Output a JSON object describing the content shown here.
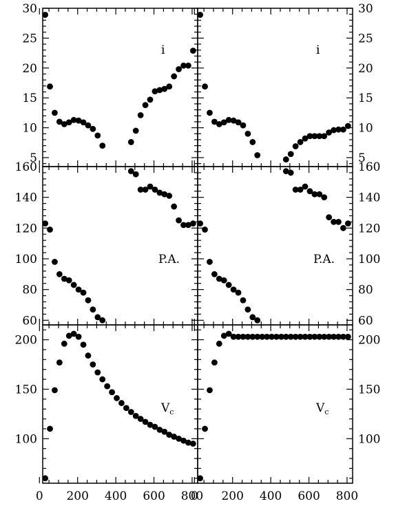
{
  "chart_data": [
    {
      "type": "scatter",
      "panel": "top-left",
      "label": "i",
      "xlim": [
        0,
        800
      ],
      "ylim": [
        3.5,
        30
      ],
      "xticks": [
        0,
        200,
        400,
        600,
        800
      ],
      "yticks": [
        5,
        10,
        15,
        20,
        25,
        30
      ],
      "points": [
        [
          30,
          28.9
        ],
        [
          55,
          16.9
        ],
        [
          80,
          12.5
        ],
        [
          105,
          11.0
        ],
        [
          130,
          10.6
        ],
        [
          155,
          10.9
        ],
        [
          180,
          11.3
        ],
        [
          205,
          11.2
        ],
        [
          230,
          10.9
        ],
        [
          255,
          10.4
        ],
        [
          280,
          9.8
        ],
        [
          305,
          8.7
        ],
        [
          330,
          7.0
        ],
        [
          480,
          7.6
        ],
        [
          505,
          9.5
        ],
        [
          530,
          12.1
        ],
        [
          555,
          13.8
        ],
        [
          580,
          14.7
        ],
        [
          605,
          16.1
        ],
        [
          630,
          16.3
        ],
        [
          655,
          16.5
        ],
        [
          680,
          16.9
        ],
        [
          705,
          18.6
        ],
        [
          730,
          19.8
        ],
        [
          755,
          20.4
        ],
        [
          780,
          20.4
        ],
        [
          805,
          22.9
        ]
      ]
    },
    {
      "type": "scatter",
      "panel": "top-right",
      "label": "i",
      "xlim": [
        0,
        800
      ],
      "ylim": [
        3.5,
        30
      ],
      "xticks": [
        0,
        200,
        400,
        600,
        800
      ],
      "yticks": [
        5,
        10,
        15,
        20,
        25,
        30
      ],
      "points": [
        [
          30,
          28.9
        ],
        [
          55,
          16.9
        ],
        [
          80,
          12.5
        ],
        [
          105,
          11.0
        ],
        [
          130,
          10.6
        ],
        [
          155,
          10.9
        ],
        [
          180,
          11.3
        ],
        [
          205,
          11.2
        ],
        [
          230,
          10.9
        ],
        [
          255,
          10.4
        ],
        [
          280,
          9.0
        ],
        [
          305,
          7.6
        ],
        [
          330,
          5.4
        ],
        [
          480,
          4.7
        ],
        [
          505,
          5.6
        ],
        [
          530,
          6.9
        ],
        [
          555,
          7.6
        ],
        [
          580,
          8.2
        ],
        [
          605,
          8.6
        ],
        [
          630,
          8.6
        ],
        [
          655,
          8.6
        ],
        [
          680,
          8.6
        ],
        [
          705,
          9.2
        ],
        [
          730,
          9.6
        ],
        [
          755,
          9.7
        ],
        [
          780,
          9.7
        ],
        [
          805,
          10.3
        ]
      ]
    },
    {
      "type": "scatter",
      "panel": "middle-left",
      "label": "P.A.",
      "xlim": [
        0,
        800
      ],
      "ylim": [
        57,
        160
      ],
      "xticks": [
        0,
        200,
        400,
        600,
        800
      ],
      "yticks": [
        60,
        80,
        100,
        120,
        140,
        160
      ],
      "points": [
        [
          30,
          123
        ],
        [
          55,
          119
        ],
        [
          80,
          98
        ],
        [
          105,
          90
        ],
        [
          130,
          87
        ],
        [
          155,
          86
        ],
        [
          180,
          83
        ],
        [
          205,
          80
        ],
        [
          230,
          78
        ],
        [
          255,
          73
        ],
        [
          280,
          67
        ],
        [
          305,
          62
        ],
        [
          330,
          60
        ],
        [
          480,
          157
        ],
        [
          505,
          155
        ],
        [
          530,
          145
        ],
        [
          555,
          145
        ],
        [
          580,
          147
        ],
        [
          605,
          145
        ],
        [
          630,
          143
        ],
        [
          655,
          142
        ],
        [
          680,
          141
        ],
        [
          705,
          134
        ],
        [
          730,
          125
        ],
        [
          755,
          122
        ],
        [
          780,
          122
        ],
        [
          805,
          123
        ]
      ]
    },
    {
      "type": "scatter",
      "panel": "middle-right",
      "label": "P.A.",
      "xlim": [
        0,
        800
      ],
      "ylim": [
        57,
        160
      ],
      "xticks": [
        0,
        200,
        400,
        600,
        800
      ],
      "yticks": [
        60,
        80,
        100,
        120,
        140,
        160
      ],
      "points": [
        [
          30,
          123
        ],
        [
          55,
          119
        ],
        [
          80,
          98
        ],
        [
          105,
          90
        ],
        [
          130,
          87
        ],
        [
          155,
          86
        ],
        [
          180,
          83
        ],
        [
          205,
          80
        ],
        [
          230,
          78
        ],
        [
          255,
          73
        ],
        [
          280,
          67
        ],
        [
          305,
          62
        ],
        [
          330,
          60
        ],
        [
          480,
          157
        ],
        [
          505,
          156
        ],
        [
          530,
          145
        ],
        [
          555,
          145
        ],
        [
          580,
          147
        ],
        [
          605,
          144
        ],
        [
          630,
          142
        ],
        [
          655,
          142
        ],
        [
          680,
          140
        ],
        [
          705,
          127
        ],
        [
          730,
          124
        ],
        [
          755,
          124
        ],
        [
          780,
          120
        ],
        [
          805,
          123
        ]
      ]
    },
    {
      "type": "scatter",
      "panel": "bottom-left",
      "label": "V",
      "label_subscript": "c",
      "xlim": [
        0,
        800
      ],
      "ylim": [
        55,
        215
      ],
      "xticks": [
        0,
        200,
        400,
        600,
        800
      ],
      "xtick_labels": [
        "0",
        "200",
        "400",
        "600",
        "800"
      ],
      "yticks": [
        100,
        150,
        200
      ],
      "points": [
        [
          30,
          60
        ],
        [
          55,
          110
        ],
        [
          80,
          149
        ],
        [
          105,
          177
        ],
        [
          130,
          196
        ],
        [
          155,
          204
        ],
        [
          180,
          206
        ],
        [
          205,
          203
        ],
        [
          230,
          195
        ],
        [
          255,
          184
        ],
        [
          280,
          175
        ],
        [
          305,
          167
        ],
        [
          330,
          160
        ],
        [
          355,
          153
        ],
        [
          380,
          147
        ],
        [
          405,
          141
        ],
        [
          430,
          136
        ],
        [
          455,
          131
        ],
        [
          480,
          127
        ],
        [
          505,
          123
        ],
        [
          530,
          120
        ],
        [
          555,
          117
        ],
        [
          580,
          114
        ],
        [
          605,
          112
        ],
        [
          630,
          109
        ],
        [
          655,
          107
        ],
        [
          680,
          104
        ],
        [
          705,
          102
        ],
        [
          730,
          100
        ],
        [
          755,
          98
        ],
        [
          780,
          96
        ],
        [
          805,
          95
        ]
      ]
    },
    {
      "type": "scatter",
      "panel": "bottom-right",
      "label": "V",
      "label_subscript": "c",
      "xlim": [
        0,
        800
      ],
      "ylim": [
        55,
        215
      ],
      "xticks": [
        0,
        200,
        400,
        600,
        800
      ],
      "xtick_labels": [
        "0",
        "200",
        "400",
        "600",
        "800"
      ],
      "yticks": [
        100,
        150,
        200
      ],
      "points": [
        [
          30,
          60
        ],
        [
          55,
          110
        ],
        [
          80,
          149
        ],
        [
          105,
          177
        ],
        [
          130,
          196
        ],
        [
          155,
          204
        ],
        [
          180,
          206
        ],
        [
          205,
          203
        ],
        [
          230,
          203
        ],
        [
          255,
          203
        ],
        [
          280,
          203
        ],
        [
          305,
          203
        ],
        [
          330,
          203
        ],
        [
          355,
          203
        ],
        [
          380,
          203
        ],
        [
          405,
          203
        ],
        [
          430,
          203
        ],
        [
          455,
          203
        ],
        [
          480,
          203
        ],
        [
          505,
          203
        ],
        [
          530,
          203
        ],
        [
          555,
          203
        ],
        [
          580,
          203
        ],
        [
          605,
          203
        ],
        [
          630,
          203
        ],
        [
          655,
          203
        ],
        [
          680,
          203
        ],
        [
          705,
          203
        ],
        [
          730,
          203
        ],
        [
          755,
          203
        ],
        [
          780,
          203
        ],
        [
          805,
          203
        ]
      ]
    }
  ],
  "colors": {
    "marker": "#000000",
    "axis": "#000000",
    "background": "#ffffff"
  }
}
